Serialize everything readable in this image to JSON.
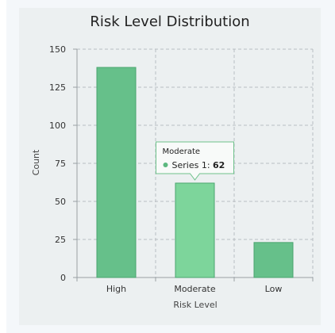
{
  "chart_data": {
    "type": "bar",
    "title": "Risk Level Distribution",
    "xlabel": "Risk Level",
    "ylabel": "Count",
    "categories": [
      "High",
      "Moderate",
      "Low"
    ],
    "series": [
      {
        "name": "Series 1",
        "values": [
          138,
          62,
          23
        ]
      }
    ],
    "ylim": [
      0,
      150
    ],
    "yticks": [
      0,
      25,
      50,
      75,
      100,
      125,
      150
    ],
    "grid": true,
    "tooltip": {
      "category": "Moderate",
      "series_label": "Series 1",
      "value": "62"
    },
    "colors": {
      "bar": "#66c08a",
      "bar_highlight": "#7dd59b",
      "bar_stroke": "#4aa56f",
      "tooltip_border": "#6fc28c",
      "tooltip_dot": "#5cb87f"
    }
  }
}
